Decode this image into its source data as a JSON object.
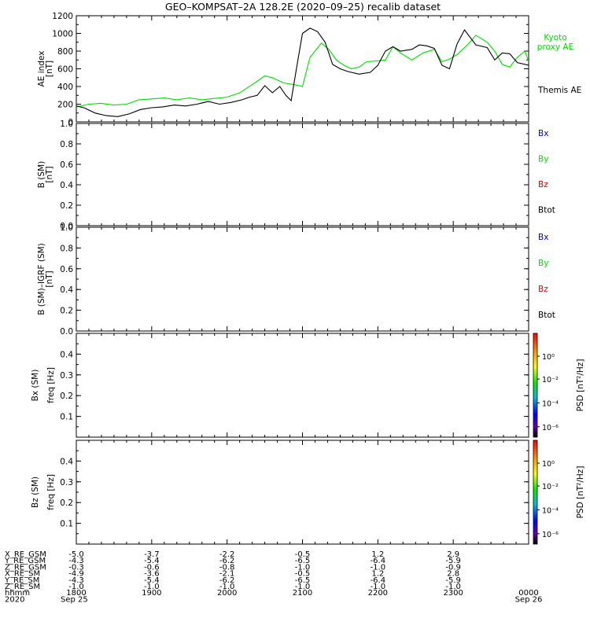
{
  "title": "GEO–KOMPSAT–2A 128.2E (2020–09–25) recalib dataset",
  "colors": {
    "black": "#000000",
    "green": "#00dd00",
    "blue": "#0000cc",
    "red": "#dd0000"
  },
  "chart_data": [
    {
      "type": "line",
      "ylabel": "AE index",
      "yunit": "[nT]",
      "ylim": [
        0,
        1200
      ],
      "yticks": [
        "0",
        "200",
        "400",
        "600",
        "800",
        "1000",
        "1200"
      ],
      "xlim": [
        18,
        24
      ],
      "series": [
        {
          "name": "Kyoto proxy AE",
          "color": "#00dd00",
          "x": [
            18.0,
            18.17,
            18.33,
            18.5,
            18.67,
            18.83,
            19.0,
            19.17,
            19.33,
            19.5,
            19.67,
            19.83,
            20.0,
            20.17,
            20.33,
            20.5,
            20.6,
            20.75,
            20.9,
            21.0,
            21.1,
            21.25,
            21.35,
            21.45,
            21.55,
            21.65,
            21.75,
            21.85,
            22.0,
            22.1,
            22.2,
            22.3,
            22.45,
            22.6,
            22.75,
            22.85,
            22.95,
            23.05,
            23.2,
            23.3,
            23.45,
            23.55,
            23.65,
            23.75,
            23.85,
            23.95,
            24.0
          ],
          "y": [
            170,
            200,
            210,
            190,
            200,
            250,
            260,
            270,
            250,
            270,
            250,
            265,
            280,
            330,
            420,
            520,
            500,
            440,
            420,
            400,
            730,
            890,
            820,
            700,
            640,
            600,
            620,
            680,
            690,
            700,
            850,
            780,
            700,
            780,
            820,
            680,
            710,
            760,
            880,
            980,
            900,
            800,
            650,
            620,
            730,
            800,
            680
          ]
        },
        {
          "name": "Themis AE",
          "color": "#000000",
          "x": [
            18.0,
            18.1,
            18.25,
            18.4,
            18.55,
            18.7,
            18.85,
            19.0,
            19.15,
            19.3,
            19.45,
            19.6,
            19.75,
            19.9,
            20.05,
            20.2,
            20.3,
            20.4,
            20.5,
            20.6,
            20.7,
            20.78,
            20.85,
            20.92,
            21.0,
            21.1,
            21.2,
            21.3,
            21.4,
            21.5,
            21.6,
            21.75,
            21.9,
            22.0,
            22.1,
            22.2,
            22.3,
            22.45,
            22.55,
            22.65,
            22.75,
            22.85,
            22.95,
            23.05,
            23.15,
            23.3,
            23.45,
            23.55,
            23.65,
            23.75,
            23.85,
            24.0
          ],
          "y": [
            180,
            160,
            100,
            70,
            60,
            90,
            140,
            160,
            170,
            190,
            180,
            200,
            230,
            200,
            220,
            250,
            280,
            300,
            410,
            330,
            400,
            300,
            240,
            600,
            1000,
            1060,
            1020,
            900,
            650,
            600,
            570,
            540,
            560,
            640,
            800,
            850,
            800,
            820,
            870,
            860,
            830,
            640,
            600,
            880,
            1040,
            870,
            840,
            700,
            780,
            770,
            670,
            640
          ]
        }
      ],
      "legend": [
        "Kyoto",
        "proxy AE",
        "Themis AE"
      ]
    },
    {
      "type": "line",
      "ylabel": "B (SM)",
      "yunit": "[nT]",
      "ylim": [
        0,
        1
      ],
      "yticks": [
        "0.0",
        "0.2",
        "0.4",
        "0.6",
        "0.8",
        "1.0"
      ],
      "legend": [
        "Bx",
        "By",
        "Bz",
        "Btot"
      ]
    },
    {
      "type": "line",
      "ylabel": "B (SM)–IGRF (SM)",
      "yunit": "[nT]",
      "ylim": [
        0,
        1
      ],
      "yticks": [
        "0.0",
        "0.2",
        "0.4",
        "0.6",
        "0.8",
        "1.0"
      ],
      "legend": [
        "Bx",
        "By",
        "Bz",
        "Btot"
      ]
    },
    {
      "type": "heatmap",
      "ylabel": "Bx (SM)",
      "ylabel2": "freq [Hz]",
      "ylim": [
        0,
        0.5
      ],
      "yticks": [
        "0.1",
        "0.2",
        "0.3",
        "0.4"
      ],
      "colorbar": {
        "label": "PSD [nT²/Hz]",
        "ticks": [
          "10⁰",
          "10⁻²",
          "10⁻⁴",
          "10⁻⁶"
        ]
      }
    },
    {
      "type": "heatmap",
      "ylabel": "Bz (SM)",
      "ylabel2": "freq [Hz]",
      "ylim": [
        0,
        0.5
      ],
      "yticks": [
        "0.1",
        "0.2",
        "0.3",
        "0.4"
      ],
      "colorbar": {
        "label": "PSD [nT²/Hz]",
        "ticks": [
          "10⁰",
          "10⁻²",
          "10⁻⁴",
          "10⁻⁶"
        ]
      }
    }
  ],
  "footer": {
    "rows": [
      {
        "label": "X_RE_GSM",
        "values": [
          "-5.0",
          "-3.7",
          "-2.2",
          "-0.5",
          "1.2",
          "2.9"
        ]
      },
      {
        "label": "Y_RE_GSM",
        "values": [
          "-4.3",
          "-5.4",
          "-6.2",
          "-6.5",
          "-6.4",
          "-5.9"
        ]
      },
      {
        "label": "Z_RE_GSM",
        "values": [
          "-0.3",
          "-0.6",
          "-0.8",
          "-1.0",
          "-1.0",
          "-0.9"
        ]
      },
      {
        "label": "X_RE_SM",
        "values": [
          "-4.9",
          "-3.6",
          "-2.1",
          "-0.5",
          "1.2",
          "2.8"
        ]
      },
      {
        "label": "Y_RE_SM",
        "values": [
          "-4.3",
          "-5.4",
          "-6.2",
          "-6.5",
          "-6.4",
          "-5.9"
        ]
      },
      {
        "label": "Z_RE_SM",
        "values": [
          "-1.0",
          "-1.0",
          "-1.0",
          "-1.0",
          "-1.0",
          "-1.0"
        ]
      },
      {
        "label": "hhmm",
        "values": [
          "1800",
          "1900",
          "2000",
          "2100",
          "2200",
          "2300",
          "0000"
        ]
      },
      {
        "label": "2020",
        "values": [
          "Sep 25",
          "",
          "",
          "",
          "",
          "",
          "Sep 26"
        ]
      }
    ]
  }
}
